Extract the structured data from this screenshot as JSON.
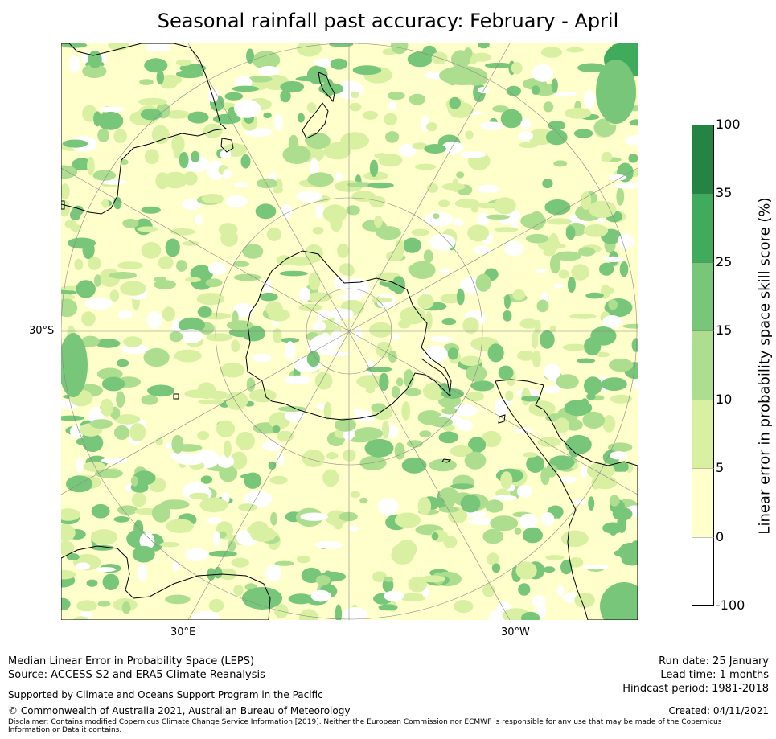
{
  "title": "Seasonal rainfall past accuracy: February - April",
  "map": {
    "projection": "south-polar stereographic",
    "lat_label": "30°S",
    "lon_labels": [
      "30°E",
      "30°W"
    ],
    "background_color": "#ffffcc",
    "coastline_color": "#000000"
  },
  "colorbar": {
    "label": "Linear error in probability space skill score (%)",
    "ticks": [
      "100",
      "35",
      "25",
      "15",
      "10",
      "5",
      "0",
      "-100"
    ],
    "bins": [
      {
        "range": "35 to 100",
        "color": "#238443"
      },
      {
        "range": "25 to 35",
        "color": "#41ab5d"
      },
      {
        "range": "15 to 25",
        "color": "#78c679"
      },
      {
        "range": "10 to 15",
        "color": "#addd8e"
      },
      {
        "range": "5 to 10",
        "color": "#d9f0a3"
      },
      {
        "range": "0 to 5",
        "color": "#ffffcc"
      },
      {
        "range": "-100 to 0",
        "color": "#ffffff"
      }
    ]
  },
  "footer": {
    "left_line1": "Median Linear Error in Probability Space (LEPS)",
    "left_line2": "Source: ACCESS-S2 and ERA5 Climate Reanalysis",
    "support": "Supported by Climate and Oceans Support Program in the Pacific",
    "copyright": "© Commonwealth of Australia 2021, Australian Bureau of Meteorology",
    "run_date": "Run date: 25 January",
    "lead_time": "Lead time: 1 months",
    "hindcast": "Hindcast period: 1981-2018",
    "created": "Created: 04/11/2021",
    "disclaimer": "Disclaimer: Contains modified Copernicus Climate Change Service Information [2019]. Neither the European Commission nor ECMWF is responsible for any use that may be made of the Copernicus Information or Data it contains."
  }
}
